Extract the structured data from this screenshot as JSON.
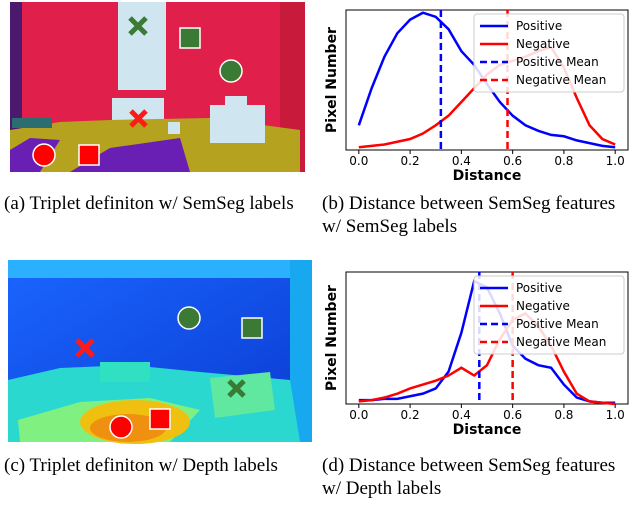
{
  "captions": [
    "(a) Triplet definiton w/ SemSeg labels",
    "(b) Distance between SemSeg features w/ SemSeg labels",
    "(c) Triplet definiton w/ Depth labels",
    "(d) Distance between SemSeg features w/ Depth labels"
  ],
  "chart_data": [
    {
      "type": "line",
      "xlabel": "Distance",
      "ylabel": "Pixel Number",
      "legend": "upper right",
      "x": [
        0,
        0.05,
        0.1,
        0.15,
        0.2,
        0.25,
        0.3,
        0.35,
        0.4,
        0.45,
        0.5,
        0.55,
        0.6,
        0.65,
        0.7,
        0.75,
        0.8,
        0.85,
        0.9,
        0.95,
        1
      ],
      "xlim": [
        -0.05,
        1.05
      ],
      "ylim": [
        0,
        102
      ],
      "xticks": [
        {
          "value": 0,
          "label": "0.0"
        },
        0.2,
        0.4,
        0.6,
        0.8,
        {
          "value": 1,
          "label": "1.0"
        }
      ],
      "series": [
        {
          "name": "Positive",
          "color": "#0000ff",
          "values": [
            18,
            45,
            68,
            85,
            95,
            100,
            97,
            88,
            72,
            62,
            48,
            35,
            25,
            18,
            14,
            11,
            10,
            7,
            5,
            3,
            2
          ]
        },
        {
          "name": "Negative",
          "color": "#ff0000",
          "values": [
            2,
            3,
            4,
            6,
            8,
            12,
            18,
            25,
            35,
            45,
            55,
            62,
            65,
            68,
            72,
            75,
            60,
            38,
            18,
            8,
            4
          ]
        },
        {
          "name": "Positive Mean",
          "color": "#0000ff",
          "dashed": true,
          "value": 0.32
        },
        {
          "name": "Negative Mean",
          "color": "#ff0000",
          "dashed": true,
          "value": 0.58
        }
      ]
    },
    {
      "type": "line",
      "xlabel": "Distance",
      "ylabel": "Pixel Number",
      "legend": "upper right",
      "x": [
        0,
        0.05,
        0.1,
        0.15,
        0.2,
        0.25,
        0.3,
        0.35,
        0.4,
        0.45,
        0.5,
        0.55,
        0.6,
        0.65,
        0.7,
        0.75,
        0.8,
        0.85,
        0.9,
        0.95,
        1
      ],
      "xlim": [
        -0.05,
        1.05
      ],
      "ylim": [
        0,
        102
      ],
      "xticks": [
        {
          "value": 0,
          "label": "0.0"
        },
        0.2,
        0.4,
        0.6,
        0.8,
        {
          "value": 1,
          "label": "1.0"
        }
      ],
      "series": [
        {
          "name": "Positive",
          "color": "#0000ff",
          "values": [
            3,
            3,
            4,
            4,
            6,
            8,
            12,
            25,
            55,
            95,
            90,
            70,
            45,
            35,
            30,
            28,
            15,
            5,
            2,
            1,
            1
          ]
        },
        {
          "name": "Negative",
          "color": "#ff0000",
          "values": [
            2,
            3,
            5,
            8,
            12,
            15,
            18,
            22,
            28,
            22,
            30,
            50,
            65,
            70,
            60,
            45,
            25,
            8,
            2,
            1,
            0
          ]
        },
        {
          "name": "Positive Mean",
          "color": "#0000ff",
          "dashed": true,
          "value": 0.47
        },
        {
          "name": "Negative Mean",
          "color": "#ff0000",
          "dashed": true,
          "value": 0.6
        }
      ]
    }
  ]
}
